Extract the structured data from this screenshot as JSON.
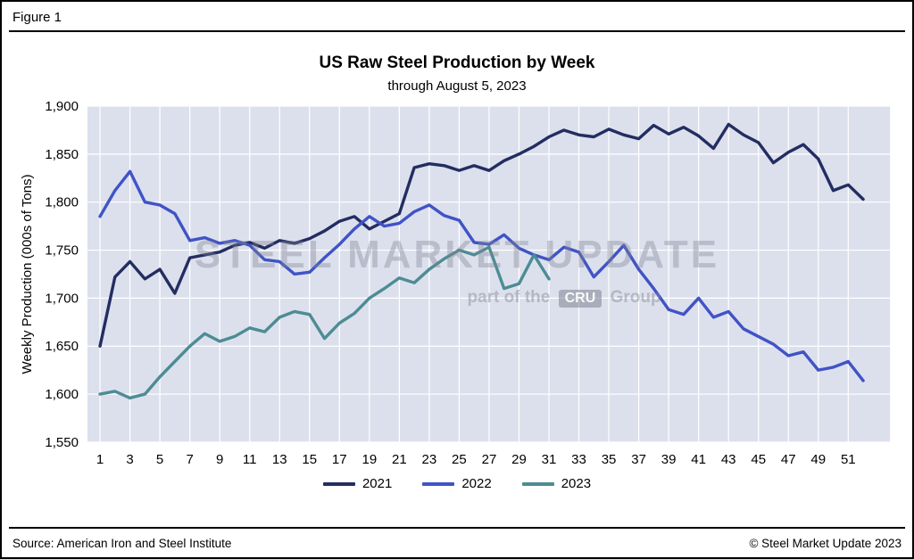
{
  "figure_label": "Figure 1",
  "footer": {
    "source": "Source: American Iron and Steel Institute",
    "copyright": "© Steel Market Update 2023"
  },
  "watermark": {
    "line1": "STEEL MARKET UPDATE",
    "line2_prefix": "part of the",
    "line2_box": "CRU",
    "line2_suffix": "Group"
  },
  "chart_data": {
    "type": "line",
    "title": "US Raw Steel Production by Week",
    "subtitle": "through August 5, 2023",
    "ylabel": "Weekly Production (000s of Tons)",
    "xlabel": "",
    "ylim": [
      1550,
      1900
    ],
    "ytick_step": 50,
    "x_count": 52,
    "xticks": [
      1,
      3,
      5,
      7,
      9,
      11,
      13,
      15,
      17,
      19,
      21,
      23,
      25,
      27,
      29,
      31,
      33,
      35,
      37,
      39,
      41,
      43,
      45,
      47,
      49,
      51
    ],
    "grid": true,
    "legend_position": "bottom",
    "plot_bg": "#DCE0ED",
    "grid_color": "#FFFFFF",
    "series": [
      {
        "name": "2021",
        "color": "#232D61",
        "values": [
          1650,
          1722,
          1738,
          1720,
          1730,
          1705,
          1742,
          1745,
          1748,
          1755,
          1758,
          1752,
          1760,
          1757,
          1762,
          1770,
          1780,
          1785,
          1772,
          1780,
          1788,
          1836,
          1840,
          1838,
          1833,
          1838,
          1833,
          1843,
          1850,
          1858,
          1868,
          1875,
          1870,
          1868,
          1876,
          1870,
          1866,
          1880,
          1871,
          1878,
          1869,
          1856,
          1881,
          1870,
          1862,
          1841,
          1852,
          1860,
          1845,
          1812,
          1818,
          1803
        ]
      },
      {
        "name": "2022",
        "color": "#4053C6",
        "values": [
          1785,
          1812,
          1832,
          1800,
          1797,
          1788,
          1760,
          1763,
          1757,
          1760,
          1755,
          1740,
          1738,
          1725,
          1727,
          1742,
          1756,
          1772,
          1785,
          1775,
          1778,
          1790,
          1797,
          1786,
          1781,
          1758,
          1756,
          1766,
          1752,
          1745,
          1740,
          1753,
          1748,
          1722,
          1738,
          1755,
          1730,
          1710,
          1688,
          1683,
          1700,
          1680,
          1686,
          1668,
          1660,
          1652,
          1640,
          1644,
          1625,
          1628,
          1634,
          1614
        ]
      },
      {
        "name": "2023",
        "color": "#4D8C94",
        "values": [
          1600,
          1603,
          1596,
          1600,
          1618,
          1634,
          1650,
          1663,
          1655,
          1660,
          1669,
          1665,
          1680,
          1686,
          1683,
          1658,
          1674,
          1684,
          1700,
          1710,
          1721,
          1716,
          1730,
          1741,
          1750,
          1745,
          1753,
          1710,
          1715,
          1745,
          1720
        ]
      }
    ]
  }
}
